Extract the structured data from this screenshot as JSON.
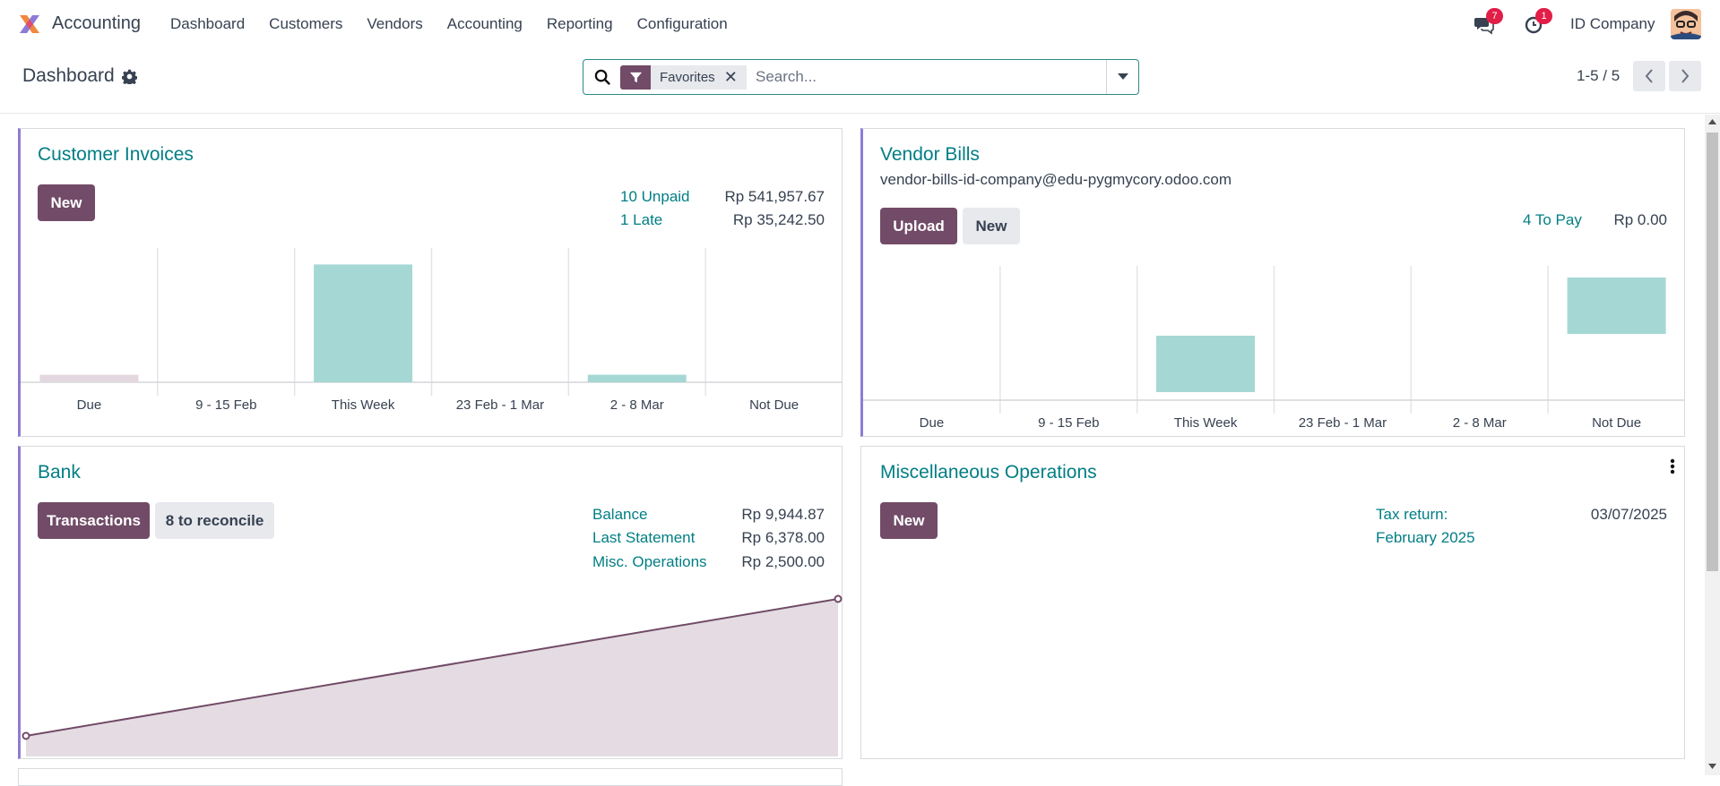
{
  "app": {
    "name": "Accounting",
    "menu": [
      "Dashboard",
      "Customers",
      "Vendors",
      "Accounting",
      "Reporting",
      "Configuration"
    ],
    "messages_badge": "7",
    "activities_badge": "1",
    "company": "ID Company"
  },
  "control": {
    "breadcrumb": "Dashboard",
    "facet": "Favorites",
    "search_placeholder": "Search...",
    "pager": "1-5 / 5"
  },
  "customer_invoices": {
    "title": "Customer Invoices",
    "new_label": "New",
    "stats": [
      {
        "label": "10 Unpaid",
        "value": "Rp 541,957.67"
      },
      {
        "label": "1 Late",
        "value": "Rp 35,242.50"
      }
    ]
  },
  "vendor_bills": {
    "title": "Vendor Bills",
    "email": "vendor-bills-id-company@edu-pygmycory.odoo.com",
    "upload_label": "Upload",
    "new_label": "New",
    "stats": [
      {
        "label": "4 To Pay",
        "value": "Rp 0.00"
      }
    ]
  },
  "bank": {
    "title": "Bank",
    "transactions_label": "Transactions",
    "reconcile_label": "8 to reconcile",
    "stats": [
      {
        "label": "Balance",
        "value": "Rp 9,944.87"
      },
      {
        "label": "Last Statement",
        "value": "Rp 6,378.00"
      },
      {
        "label": "Misc. Operations",
        "value": "Rp 2,500.00"
      }
    ]
  },
  "misc": {
    "title": "Miscellaneous Operations",
    "new_label": "New",
    "tax_return_line1": "Tax return:",
    "tax_return_line2": "February 2025",
    "tax_return_date": "03/07/2025"
  },
  "chart_data": [
    {
      "type": "bar",
      "categories": [
        "Due",
        "9 - 15 Feb",
        "This Week",
        "23 Feb - 1 Mar",
        "2 - 8 Mar",
        "Not Due"
      ],
      "values": [
        0.06,
        0,
        0.94,
        0,
        0.06,
        0
      ],
      "colors": [
        "#e3d8df",
        "#a5d8d5",
        "#a5d8d5",
        "#a5d8d5",
        "#a5d8d5",
        "#a5d8d5"
      ]
    },
    {
      "type": "bar",
      "categories": [
        "Due",
        "9 - 15 Feb",
        "This Week",
        "23 Feb - 1 Mar",
        "2 - 8 Mar",
        "Not Due"
      ],
      "values": [
        0,
        0,
        0.4,
        0,
        0,
        0.4
      ],
      "colors": [
        "#a5d8d5",
        "#a5d8d5",
        "#a5d8d5",
        "#a5d8d5",
        "#a5d8d5",
        "#a5d8d5"
      ]
    },
    {
      "type": "area",
      "x": [
        0,
        1
      ],
      "values": [
        0,
        1
      ],
      "color": "#714b67"
    }
  ]
}
